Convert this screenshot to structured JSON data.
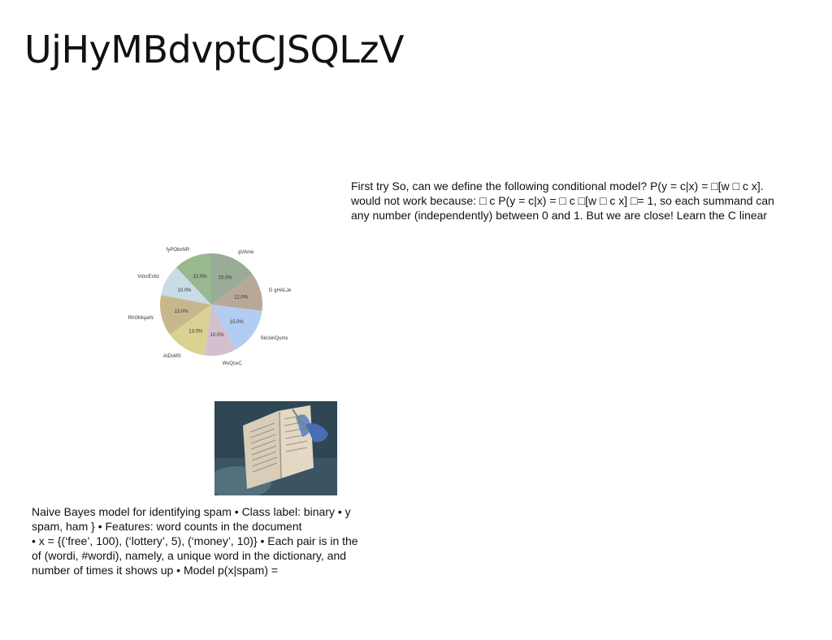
{
  "slide": {
    "title": "UjHyMBdvptCJSQLzV",
    "right_text_lines": [
      "First try So, can we define the following conditional model? P(y = c|x) = □[w □ c x].",
      "would not work because: □ c P(y = c|x) = □ c □[w □ c x] □= 1, so each summand can",
      "any number (independently) between 0 and 1. But we are close! Learn the C linear"
    ],
    "left_text_lines": [
      "Naive Bayes model for identifying spam • Class label: binary • y",
      "spam, ham } • Features: word counts in the document",
      "• x = {(‘free’, 100), (‘lottery’, 5), (‘money’, 10)} • Each pair is in the",
      "of (wordi, #wordi), namely, a unique word in the dictionary, and",
      "number of times it shows up • Model p(x|spam) ="
    ],
    "photo_icon": "open-book-photo"
  },
  "chart_data": {
    "type": "pie",
    "title": "",
    "slices": [
      {
        "label": "gVAme",
        "value": 15.0,
        "pct_label": "15.0%",
        "color": "#9aab98"
      },
      {
        "label": "G gHALJe",
        "value": 12.0,
        "pct_label": "12.0%",
        "color": "#b9a898"
      },
      {
        "label": "SkUoriQums",
        "value": 15.0,
        "pct_label": "15.0%",
        "color": "#b3ccf2"
      },
      {
        "label": "WvQceC",
        "value": 10.0,
        "pct_label": "10.0%",
        "color": "#d4bfcf"
      },
      {
        "label": "AtDsMS",
        "value": 13.0,
        "pct_label": "13.0%",
        "color": "#d9d292"
      },
      {
        "label": "RhGMsjaIN",
        "value": 13.0,
        "pct_label": "13.0%",
        "color": "#c7b88c"
      },
      {
        "label": "VdxcEsbz",
        "value": 10.0,
        "pct_label": "10.0%",
        "color": "#c9dbe6"
      },
      {
        "label": "fyPObxNR",
        "value": 12.0,
        "pct_label": "12.0%",
        "color": "#98b890"
      }
    ],
    "start_angle_deg": 90,
    "direction": "clockwise"
  }
}
